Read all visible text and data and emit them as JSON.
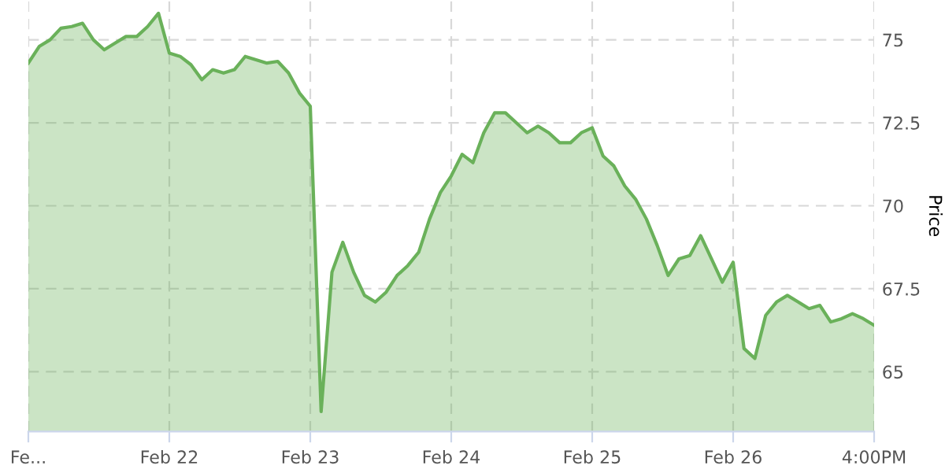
{
  "chart_data": {
    "type": "area",
    "ylabel": "Price",
    "categories": [
      "Fe...",
      null,
      null,
      null,
      null,
      null,
      null,
      null,
      null,
      null,
      null,
      null,
      null,
      "Feb 22",
      null,
      null,
      null,
      null,
      null,
      null,
      null,
      null,
      null,
      null,
      null,
      null,
      "Feb 23",
      null,
      null,
      null,
      null,
      null,
      null,
      null,
      null,
      null,
      null,
      null,
      null,
      "Feb 24",
      null,
      null,
      null,
      null,
      null,
      null,
      null,
      null,
      null,
      null,
      null,
      null,
      "Feb 25",
      null,
      null,
      null,
      null,
      null,
      null,
      null,
      null,
      null,
      null,
      null,
      null,
      "Feb 26",
      null,
      null,
      null,
      null,
      null,
      null,
      null,
      null,
      null,
      null,
      null,
      null,
      "4:00PM"
    ],
    "series": [
      {
        "color": "#6ab15a",
        "values": [
          74.3,
          74.8,
          75.0,
          75.35,
          75.4,
          75.5,
          75.0,
          74.7,
          74.9,
          75.1,
          75.1,
          75.4,
          75.8,
          74.6,
          74.5,
          74.25,
          73.8,
          74.1,
          74.0,
          74.1,
          74.5,
          74.4,
          74.3,
          74.35,
          74.0,
          73.4,
          73.0,
          63.8,
          68.0,
          68.9,
          68.0,
          67.3,
          67.1,
          67.4,
          67.9,
          68.2,
          68.6,
          69.6,
          70.4,
          70.9,
          71.55,
          71.3,
          72.2,
          72.8,
          72.8,
          72.5,
          72.2,
          72.4,
          72.2,
          71.9,
          71.9,
          72.2,
          72.35,
          71.5,
          71.2,
          70.6,
          70.2,
          69.6,
          68.8,
          67.9,
          68.4,
          68.5,
          69.1,
          68.4,
          67.7,
          68.3,
          65.7,
          65.4,
          66.7,
          67.1,
          67.3,
          67.1,
          66.9,
          67.0,
          66.5,
          66.6,
          66.75,
          66.6,
          66.4
        ]
      }
    ],
    "ylim": [
      63.2,
      76.2
    ],
    "yticks": [
      65,
      67.5,
      70,
      72.5,
      75
    ],
    "grid": true
  }
}
